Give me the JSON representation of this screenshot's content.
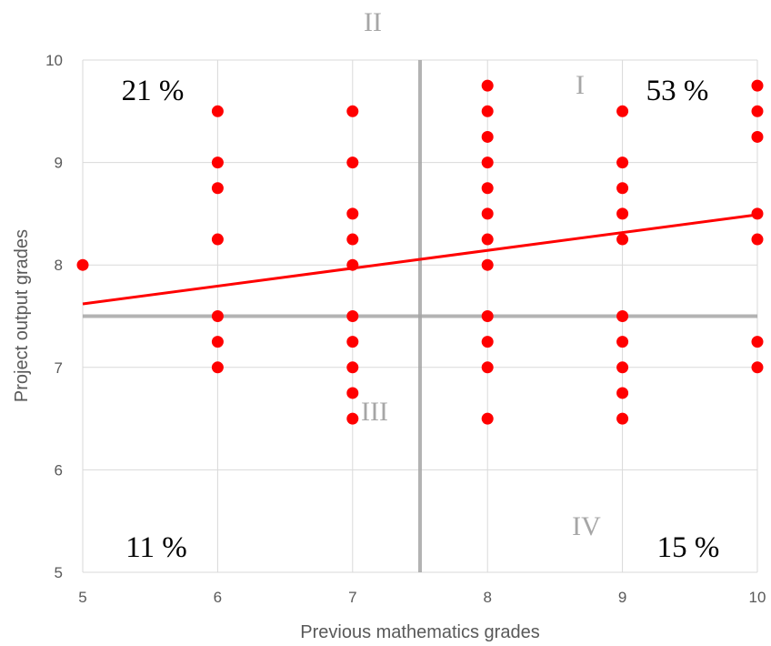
{
  "chart_data": {
    "type": "scatter",
    "title": "",
    "xlabel": "Previous mathematics grades",
    "ylabel": "Project output grades",
    "xlim": [
      5,
      10
    ],
    "ylim": [
      5,
      10
    ],
    "xticks": [
      "5",
      "6",
      "7",
      "8",
      "9",
      "10"
    ],
    "yticks": [
      "5",
      "6",
      "7",
      "8",
      "9",
      "10"
    ],
    "grid": true,
    "legend": "none",
    "colors": {
      "points": "#ff0000",
      "trendline": "#ff0000",
      "dividers": "#a6a6a6"
    },
    "points": [
      {
        "x": 5,
        "y": 8
      },
      {
        "x": 6,
        "y": 9.5
      },
      {
        "x": 6,
        "y": 9
      },
      {
        "x": 6,
        "y": 8.75
      },
      {
        "x": 6,
        "y": 8.25
      },
      {
        "x": 6,
        "y": 7.5
      },
      {
        "x": 6,
        "y": 7.25
      },
      {
        "x": 6,
        "y": 7
      },
      {
        "x": 7,
        "y": 9.5
      },
      {
        "x": 7,
        "y": 9
      },
      {
        "x": 7,
        "y": 8.5
      },
      {
        "x": 7,
        "y": 8.25
      },
      {
        "x": 7,
        "y": 8
      },
      {
        "x": 7,
        "y": 7.5
      },
      {
        "x": 7,
        "y": 7.25
      },
      {
        "x": 7,
        "y": 7
      },
      {
        "x": 7,
        "y": 6.75
      },
      {
        "x": 7,
        "y": 6.5
      },
      {
        "x": 8,
        "y": 9.75
      },
      {
        "x": 8,
        "y": 9.5
      },
      {
        "x": 8,
        "y": 9.25
      },
      {
        "x": 8,
        "y": 9
      },
      {
        "x": 8,
        "y": 8.75
      },
      {
        "x": 8,
        "y": 8.5
      },
      {
        "x": 8,
        "y": 8.25
      },
      {
        "x": 8,
        "y": 8
      },
      {
        "x": 8,
        "y": 7.5
      },
      {
        "x": 8,
        "y": 7.25
      },
      {
        "x": 8,
        "y": 7
      },
      {
        "x": 8,
        "y": 6.5
      },
      {
        "x": 9,
        "y": 9.5
      },
      {
        "x": 9,
        "y": 9
      },
      {
        "x": 9,
        "y": 8.75
      },
      {
        "x": 9,
        "y": 8.5
      },
      {
        "x": 9,
        "y": 8.25
      },
      {
        "x": 9,
        "y": 7.5
      },
      {
        "x": 9,
        "y": 7.25
      },
      {
        "x": 9,
        "y": 7
      },
      {
        "x": 9,
        "y": 6.75
      },
      {
        "x": 9,
        "y": 6.5
      },
      {
        "x": 10,
        "y": 9.75
      },
      {
        "x": 10,
        "y": 9.5
      },
      {
        "x": 10,
        "y": 9.25
      },
      {
        "x": 10,
        "y": 8.5
      },
      {
        "x": 10,
        "y": 8.25
      },
      {
        "x": 10,
        "y": 7.25
      },
      {
        "x": 10,
        "y": 7
      }
    ],
    "trendline": {
      "x": [
        5,
        10
      ],
      "y": [
        7.62,
        8.49
      ]
    },
    "dividers": {
      "x": 7.5,
      "y": 7.5
    },
    "quadrants": [
      {
        "roman": "I",
        "percent": "53 %"
      },
      {
        "roman": "II",
        "percent": "21 %"
      },
      {
        "roman": "III",
        "percent": "11 %"
      },
      {
        "roman": "IV",
        "percent": "15 %"
      }
    ]
  }
}
